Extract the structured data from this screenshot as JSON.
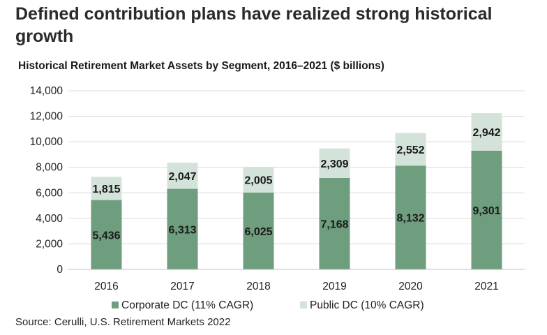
{
  "page": {
    "title": "Defined contribution plans have realized strong historical growth",
    "source": "Source: Cerulli, U.S. Retirement Markets 2022"
  },
  "chart_data": {
    "type": "bar",
    "stacked": true,
    "title": "Historical Retirement Market Assets by Segment, 2016–2021 ($ billions)",
    "xlabel": "",
    "ylabel": "",
    "categories": [
      "2016",
      "2017",
      "2018",
      "2019",
      "2020",
      "2021"
    ],
    "series": [
      {
        "name": "Corporate DC (11% CAGR)",
        "values": [
          5436,
          6313,
          6025,
          7168,
          8132,
          9301
        ],
        "color": "#6e9e7e"
      },
      {
        "name": "Public DC (10% CAGR)",
        "values": [
          1815,
          2047,
          2005,
          2309,
          2552,
          2942
        ],
        "color": "#d4e3d9"
      }
    ],
    "ylim": [
      0,
      14000
    ],
    "yticks": [
      0,
      2000,
      4000,
      6000,
      8000,
      10000,
      12000,
      14000
    ],
    "grid": true,
    "legend_position": "bottom"
  }
}
